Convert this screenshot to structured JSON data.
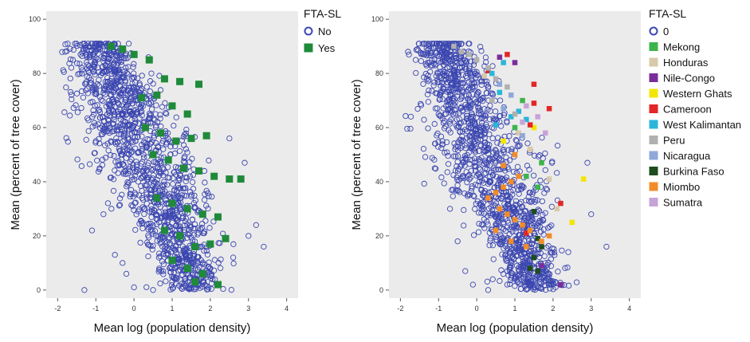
{
  "chart_data": [
    {
      "type": "scatter",
      "title": "",
      "xlabel": "Mean log (population density)",
      "ylabel": "Mean (percent of tree cover)",
      "xlim": [
        -2.3,
        4.3
      ],
      "ylim": [
        -3,
        103
      ],
      "xticks": [
        -2,
        -1,
        0,
        1,
        2,
        3,
        4
      ],
      "yticks": [
        0,
        20,
        40,
        60,
        80,
        100
      ],
      "grid": false,
      "legend": {
        "title": "FTA-SL",
        "placement": "right",
        "entries": [
          {
            "label": "No",
            "marker": "circle-open",
            "color": "#3b46b0"
          },
          {
            "label": "Yes",
            "marker": "square",
            "color": "#1f8a3a"
          }
        ]
      },
      "series": [
        {
          "name": "No",
          "marker": "circle-open",
          "color": "#3b46b0",
          "approx_count": 1400,
          "points": [
            [
              -1.8,
              88
            ],
            [
              -1.6,
              85
            ],
            [
              -1.4,
              87
            ],
            [
              -1.3,
              0
            ],
            [
              -1.1,
              22
            ],
            [
              -1.0,
              55
            ],
            [
              -0.9,
              45
            ],
            [
              -0.8,
              28
            ],
            [
              -0.7,
              90
            ],
            [
              -0.5,
              13
            ],
            [
              -0.3,
              10
            ],
            [
              -0.2,
              6
            ],
            [
              0.0,
              1
            ],
            [
              0.5,
              0
            ],
            [
              1.0,
              3
            ],
            [
              1.5,
              2
            ],
            [
              2.0,
              8
            ],
            [
              2.6,
              12
            ],
            [
              3.0,
              20
            ],
            [
              3.2,
              24
            ],
            [
              3.4,
              16
            ],
            [
              2.9,
              47
            ],
            [
              2.5,
              56
            ]
          ]
        },
        {
          "name": "Yes",
          "marker": "square",
          "color": "#1f8a3a",
          "points": [
            [
              -0.6,
              90
            ],
            [
              -0.3,
              89
            ],
            [
              0.0,
              87
            ],
            [
              0.4,
              85
            ],
            [
              0.8,
              78
            ],
            [
              1.2,
              77
            ],
            [
              1.7,
              76
            ],
            [
              0.2,
              71
            ],
            [
              0.6,
              72
            ],
            [
              1.0,
              68
            ],
            [
              1.4,
              65
            ],
            [
              0.3,
              60
            ],
            [
              0.7,
              58
            ],
            [
              1.1,
              55
            ],
            [
              1.5,
              56
            ],
            [
              1.9,
              57
            ],
            [
              0.5,
              50
            ],
            [
              0.9,
              48
            ],
            [
              1.3,
              45
            ],
            [
              1.7,
              44
            ],
            [
              2.1,
              42
            ],
            [
              2.5,
              41
            ],
            [
              2.8,
              41
            ],
            [
              0.6,
              34
            ],
            [
              1.0,
              32
            ],
            [
              1.4,
              30
            ],
            [
              1.8,
              28
            ],
            [
              2.2,
              27
            ],
            [
              0.8,
              22
            ],
            [
              1.2,
              20
            ],
            [
              1.6,
              16
            ],
            [
              2.0,
              17
            ],
            [
              2.4,
              19
            ],
            [
              1.0,
              11
            ],
            [
              1.4,
              8
            ],
            [
              1.8,
              6
            ],
            [
              1.6,
              3
            ],
            [
              2.2,
              2
            ]
          ]
        }
      ]
    },
    {
      "type": "scatter",
      "title": "",
      "xlabel": "Mean log (population density)",
      "ylabel": "Mean (percent of tree cover)",
      "xlim": [
        -2.3,
        4.3
      ],
      "ylim": [
        -3,
        103
      ],
      "xticks": [
        -2,
        -1,
        0,
        1,
        2,
        3,
        4
      ],
      "yticks": [
        0,
        20,
        40,
        60,
        80,
        100
      ],
      "grid": false,
      "legend": {
        "title": "FTA-SL",
        "placement": "right",
        "entries": [
          {
            "label": "0",
            "marker": "circle-open",
            "color": "#3b46b0"
          },
          {
            "label": "Mekong",
            "marker": "square",
            "color": "#3cb44b"
          },
          {
            "label": "Honduras",
            "marker": "square",
            "color": "#d7c9aa"
          },
          {
            "label": "Nile-Congo",
            "marker": "square",
            "color": "#7b2d9a"
          },
          {
            "label": "Western Ghats",
            "marker": "square",
            "color": "#f2e600"
          },
          {
            "label": "Cameroon",
            "marker": "square",
            "color": "#e32626"
          },
          {
            "label": "West Kalimantan",
            "marker": "square",
            "color": "#29b6d9"
          },
          {
            "label": "Peru",
            "marker": "square",
            "color": "#b0b0b0"
          },
          {
            "label": "Nicaragua",
            "marker": "square",
            "color": "#8fa8d9"
          },
          {
            "label": "Burkina Faso",
            "marker": "square",
            "color": "#1d4d1d"
          },
          {
            "label": "Miombo",
            "marker": "square",
            "color": "#f28c28"
          },
          {
            "label": "Sumatra",
            "marker": "square",
            "color": "#c7a3d9"
          }
        ]
      },
      "series": [
        {
          "name": "0",
          "marker": "circle-open",
          "color": "#3b46b0",
          "approx_count": 1400,
          "points": [
            [
              -1.8,
              88
            ],
            [
              -1.6,
              85
            ],
            [
              -1.4,
              87
            ],
            [
              -1.1,
              45
            ],
            [
              -0.9,
              55
            ],
            [
              -0.7,
              30
            ],
            [
              -0.5,
              18
            ],
            [
              -0.3,
              7
            ],
            [
              -0.1,
              2
            ],
            [
              0.3,
              0
            ],
            [
              0.8,
              2
            ],
            [
              1.8,
              10
            ],
            [
              2.4,
              14
            ],
            [
              3.0,
              28
            ],
            [
              3.4,
              16
            ],
            [
              2.9,
              47
            ]
          ]
        },
        {
          "name": "Mekong",
          "marker": "square",
          "color": "#3cb44b",
          "points": [
            [
              1.2,
              70
            ],
            [
              1.7,
              47
            ],
            [
              1.3,
              42
            ],
            [
              1.6,
              38
            ],
            [
              1.0,
              60
            ]
          ]
        },
        {
          "name": "Honduras",
          "marker": "square",
          "color": "#d7c9aa",
          "points": [
            [
              0.2,
              79
            ],
            [
              1.4,
              52
            ],
            [
              1.9,
              41
            ],
            [
              2.1,
              30
            ],
            [
              1.1,
              58
            ]
          ]
        },
        {
          "name": "Nile-Congo",
          "marker": "square",
          "color": "#7b2d9a",
          "points": [
            [
              0.6,
              86
            ],
            [
              1.0,
              84
            ],
            [
              1.7,
              9
            ],
            [
              2.2,
              2
            ]
          ]
        },
        {
          "name": "Western Ghats",
          "marker": "square",
          "color": "#f2e600",
          "points": [
            [
              2.8,
              41
            ],
            [
              2.5,
              25
            ],
            [
              0.7,
              55
            ],
            [
              1.5,
              60
            ]
          ]
        },
        {
          "name": "Cameroon",
          "marker": "square",
          "color": "#e32626",
          "points": [
            [
              0.8,
              87
            ],
            [
              1.5,
              76
            ],
            [
              1.5,
              69
            ],
            [
              1.9,
              67
            ],
            [
              1.4,
              61
            ],
            [
              2.2,
              32
            ],
            [
              1.3,
              21
            ],
            [
              0.3,
              81
            ]
          ]
        },
        {
          "name": "West Kalimantan",
          "marker": "square",
          "color": "#29b6d9",
          "points": [
            [
              0.7,
              84
            ],
            [
              0.4,
              80
            ],
            [
              0.6,
              73
            ],
            [
              1.1,
              66
            ],
            [
              0.9,
              64
            ],
            [
              0.5,
              61
            ],
            [
              1.3,
              63
            ]
          ]
        },
        {
          "name": "Peru",
          "marker": "square",
          "color": "#b0b0b0",
          "points": [
            [
              -0.6,
              90
            ],
            [
              -0.4,
              88
            ],
            [
              -0.2,
              87
            ],
            [
              0.0,
              85
            ],
            [
              0.3,
              82
            ],
            [
              0.5,
              78
            ],
            [
              0.8,
              75
            ],
            [
              0.4,
              70
            ],
            [
              1.0,
              65
            ]
          ]
        },
        {
          "name": "Nicaragua",
          "marker": "square",
          "color": "#8fa8d9",
          "points": [
            [
              0.6,
              76
            ],
            [
              0.9,
              72
            ],
            [
              0.7,
              67
            ],
            [
              1.2,
              57
            ]
          ]
        },
        {
          "name": "Burkina Faso",
          "marker": "square",
          "color": "#1d4d1d",
          "points": [
            [
              1.5,
              29
            ],
            [
              1.6,
              19
            ],
            [
              1.7,
              16
            ],
            [
              1.5,
              12
            ],
            [
              1.6,
              7
            ],
            [
              1.4,
              8
            ]
          ]
        },
        {
          "name": "Miombo",
          "marker": "square",
          "color": "#f28c28",
          "points": [
            [
              0.3,
              34
            ],
            [
              0.5,
              36
            ],
            [
              0.7,
              38
            ],
            [
              0.9,
              40
            ],
            [
              1.1,
              42
            ],
            [
              0.6,
              30
            ],
            [
              0.8,
              28
            ],
            [
              1.0,
              26
            ],
            [
              1.2,
              24
            ],
            [
              1.4,
              22
            ],
            [
              0.5,
              22
            ],
            [
              0.9,
              18
            ],
            [
              1.3,
              16
            ],
            [
              1.7,
              18
            ],
            [
              1.9,
              20
            ],
            [
              0.7,
              46
            ],
            [
              1.0,
              50
            ]
          ]
        },
        {
          "name": "Sumatra",
          "marker": "square",
          "color": "#c7a3d9",
          "points": [
            [
              1.3,
              68
            ],
            [
              1.6,
              64
            ],
            [
              1.2,
              62
            ],
            [
              1.8,
              58
            ]
          ]
        }
      ]
    }
  ]
}
